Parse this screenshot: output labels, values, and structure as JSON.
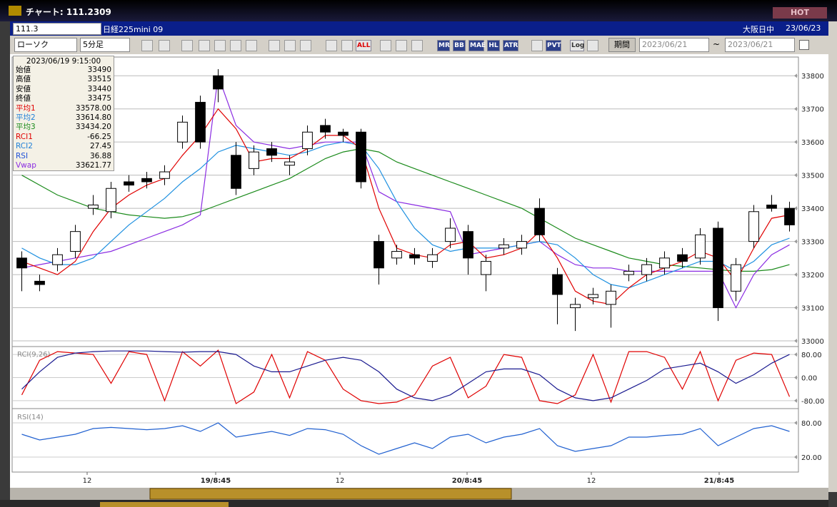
{
  "window": {
    "title": "チャート: 111.2309",
    "hot": "HOT"
  },
  "symbol_bar": {
    "code": "111.3",
    "name": "日経225mini 09",
    "session": "大阪日中",
    "date": "23/06/23"
  },
  "toolbar": {
    "chart_type": "ローソク",
    "interval": "5分足",
    "buttons": [
      "ALL",
      "MR",
      "BB",
      "MAE",
      "HL",
      "ATR",
      "PVT",
      "Log"
    ],
    "period": "期間",
    "from": "2023/06/21",
    "separator": "~",
    "to": "2023/06/21"
  },
  "info": {
    "time": "2023/06/19 9:15:00",
    "rows": [
      {
        "label": "始値",
        "value": "33490",
        "color": "#000000"
      },
      {
        "label": "高値",
        "value": "33515",
        "color": "#000000"
      },
      {
        "label": "安値",
        "value": "33440",
        "color": "#000000"
      },
      {
        "label": "終値",
        "value": "33475",
        "color": "#000000"
      },
      {
        "label": "平均1",
        "value": "33578.00",
        "color": "#e00000"
      },
      {
        "label": "平均2",
        "value": "33614.80",
        "color": "#1e7fd8"
      },
      {
        "label": "平均3",
        "value": "33434.20",
        "color": "#1a8a1a"
      },
      {
        "label": "RCI1",
        "value": "-66.25",
        "color": "#e00000"
      },
      {
        "label": "RCI2",
        "value": "27.45",
        "color": "#1e7fd8"
      },
      {
        "label": "RSI",
        "value": "36.88",
        "color": "#1e50d8"
      },
      {
        "label": "Vwap",
        "value": "33621.77",
        "color": "#8a2be2"
      }
    ]
  },
  "chart_data": [
    {
      "type": "candlestick",
      "xlim": [
        0,
        44
      ],
      "ylim": [
        32985,
        33850
      ],
      "yticks": [
        33000,
        33100,
        33200,
        33300,
        33400,
        33500,
        33600,
        33700,
        33800
      ],
      "grid": true,
      "open": [
        33250,
        33180,
        33230,
        33270,
        33400,
        33390,
        33480,
        33490,
        33490,
        33600,
        33720,
        33800,
        33560,
        33520,
        33580,
        33530,
        33580,
        33650,
        33630,
        33630,
        33300,
        33250,
        33260,
        33240,
        33300,
        33330,
        33200,
        33280,
        33280,
        33400,
        33200,
        33100,
        33130,
        33110,
        33200,
        33200,
        33220,
        33260,
        33250,
        33340,
        33150,
        33300,
        33410,
        33400
      ],
      "high": [
        33270,
        33200,
        33280,
        33350,
        33440,
        33480,
        33500,
        33510,
        33530,
        33680,
        33740,
        33820,
        33600,
        33590,
        33600,
        33560,
        33650,
        33670,
        33640,
        33640,
        33320,
        33290,
        33280,
        33280,
        33370,
        33350,
        33260,
        33310,
        33320,
        33430,
        33220,
        33130,
        33160,
        33170,
        33230,
        33250,
        33270,
        33280,
        33340,
        33360,
        33250,
        33410,
        33440,
        33420
      ],
      "low": [
        33150,
        33150,
        33210,
        33250,
        33380,
        33370,
        33450,
        33460,
        33470,
        33580,
        33580,
        33720,
        33440,
        33500,
        33540,
        33500,
        33560,
        33610,
        33600,
        33460,
        33170,
        33230,
        33230,
        33220,
        33280,
        33200,
        33150,
        33260,
        33260,
        33300,
        33050,
        33030,
        33110,
        33040,
        33180,
        33180,
        33200,
        33220,
        33230,
        33060,
        33120,
        33280,
        33390,
        33330
      ],
      "close": [
        33220,
        33170,
        33260,
        33330,
        33410,
        33460,
        33470,
        33480,
        33510,
        33660,
        33600,
        33760,
        33460,
        33570,
        33560,
        33540,
        33630,
        33630,
        33620,
        33480,
        33220,
        33270,
        33250,
        33260,
        33340,
        33250,
        33240,
        33290,
        33300,
        33320,
        33140,
        33110,
        33140,
        33150,
        33210,
        33230,
        33250,
        33240,
        33320,
        33100,
        33230,
        33390,
        33400,
        33350
      ],
      "lines": [
        {
          "color": "#1a8a1a",
          "values": [
            33500,
            33470,
            33440,
            33420,
            33400,
            33390,
            33380,
            33375,
            33370,
            33375,
            33390,
            33410,
            33430,
            33450,
            33470,
            33490,
            33520,
            33550,
            33570,
            33580,
            33570,
            33540,
            33520,
            33500,
            33480,
            33460,
            33440,
            33420,
            33400,
            33370,
            33340,
            33310,
            33290,
            33270,
            33250,
            33240,
            33230,
            33225,
            33220,
            33215,
            33210,
            33210,
            33215,
            33230
          ]
        },
        {
          "color": "#8a2be2",
          "values": [
            33220,
            33230,
            33240,
            33250,
            33260,
            33270,
            33290,
            33310,
            33330,
            33350,
            33380,
            33800,
            33650,
            33600,
            33590,
            33580,
            33590,
            33600,
            33600,
            33600,
            33450,
            33420,
            33410,
            33400,
            33390,
            33260,
            33270,
            33280,
            33290,
            33300,
            33260,
            33230,
            33220,
            33220,
            33210,
            33210,
            33210,
            33210,
            33210,
            33210,
            33100,
            33200,
            33260,
            33290
          ]
        },
        {
          "color": "#1e90e0",
          "values": [
            33280,
            33250,
            33230,
            33230,
            33250,
            33300,
            33350,
            33390,
            33430,
            33480,
            33520,
            33570,
            33590,
            33580,
            33570,
            33560,
            33570,
            33590,
            33600,
            33590,
            33520,
            33420,
            33340,
            33290,
            33270,
            33280,
            33280,
            33280,
            33290,
            33300,
            33290,
            33250,
            33200,
            33170,
            33160,
            33180,
            33200,
            33220,
            33240,
            33240,
            33210,
            33240,
            33290,
            33310
          ]
        },
        {
          "color": "#e00000",
          "values": [
            33240,
            33220,
            33200,
            33240,
            33330,
            33400,
            33440,
            33470,
            33490,
            33560,
            33620,
            33700,
            33640,
            33540,
            33550,
            33550,
            33580,
            33620,
            33620,
            33580,
            33400,
            33280,
            33260,
            33250,
            33290,
            33300,
            33250,
            33260,
            33280,
            33330,
            33250,
            33150,
            33120,
            33110,
            33160,
            33200,
            33220,
            33240,
            33270,
            33250,
            33180,
            33280,
            33370,
            33380
          ]
        }
      ]
    },
    {
      "type": "line",
      "label": "RCI(9,26)",
      "xlim": [
        0,
        44
      ],
      "ylim": [
        -100,
        100
      ],
      "yticks": [
        {
          "value": 80,
          "label": "80.00"
        },
        {
          "value": 0,
          "label": "0.00"
        },
        {
          "value": -80,
          "label": "-80.00"
        }
      ],
      "series": [
        {
          "color": "#e00000",
          "values": [
            -60,
            60,
            90,
            85,
            80,
            -20,
            90,
            80,
            -80,
            90,
            40,
            95,
            -90,
            -50,
            80,
            -70,
            90,
            60,
            -40,
            -80,
            -90,
            -85,
            -60,
            40,
            70,
            -70,
            -30,
            80,
            70,
            -80,
            -90,
            -60,
            80,
            -85,
            90,
            90,
            70,
            -40,
            90,
            -80,
            60,
            85,
            80,
            -66.25
          ]
        },
        {
          "color": "#1a1a90",
          "values": [
            -40,
            20,
            70,
            85,
            90,
            92,
            92,
            92,
            90,
            88,
            90,
            90,
            80,
            40,
            20,
            20,
            40,
            60,
            70,
            60,
            20,
            -40,
            -70,
            -80,
            -60,
            -20,
            20,
            30,
            30,
            10,
            -40,
            -70,
            -80,
            -70,
            -40,
            -10,
            30,
            40,
            50,
            20,
            -20,
            10,
            50,
            80
          ]
        }
      ]
    },
    {
      "type": "line",
      "label": "RSI(14)",
      "xlim": [
        0,
        44
      ],
      "ylim": [
        0,
        100
      ],
      "yticks": [
        {
          "value": 80,
          "label": "80.00"
        },
        {
          "value": 20,
          "label": "20.00"
        }
      ],
      "xticks": [
        {
          "value": 4.16,
          "label": "12"
        },
        {
          "value": 11.36,
          "label": "19/8:45"
        },
        {
          "value": 18.32,
          "label": "12"
        },
        {
          "value": 25.44,
          "label": "20/8:45"
        },
        {
          "value": 32.4,
          "label": "12"
        },
        {
          "value": 39.56,
          "label": "21/8:45"
        }
      ],
      "series": [
        {
          "color": "#2060d0",
          "values": [
            60,
            50,
            55,
            60,
            70,
            72,
            70,
            68,
            70,
            75,
            65,
            80,
            55,
            60,
            65,
            58,
            70,
            68,
            60,
            40,
            25,
            35,
            45,
            35,
            55,
            60,
            45,
            55,
            60,
            70,
            40,
            30,
            35,
            40,
            55,
            55,
            58,
            60,
            70,
            40,
            55,
            70,
            75,
            65
          ]
        }
      ]
    }
  ]
}
